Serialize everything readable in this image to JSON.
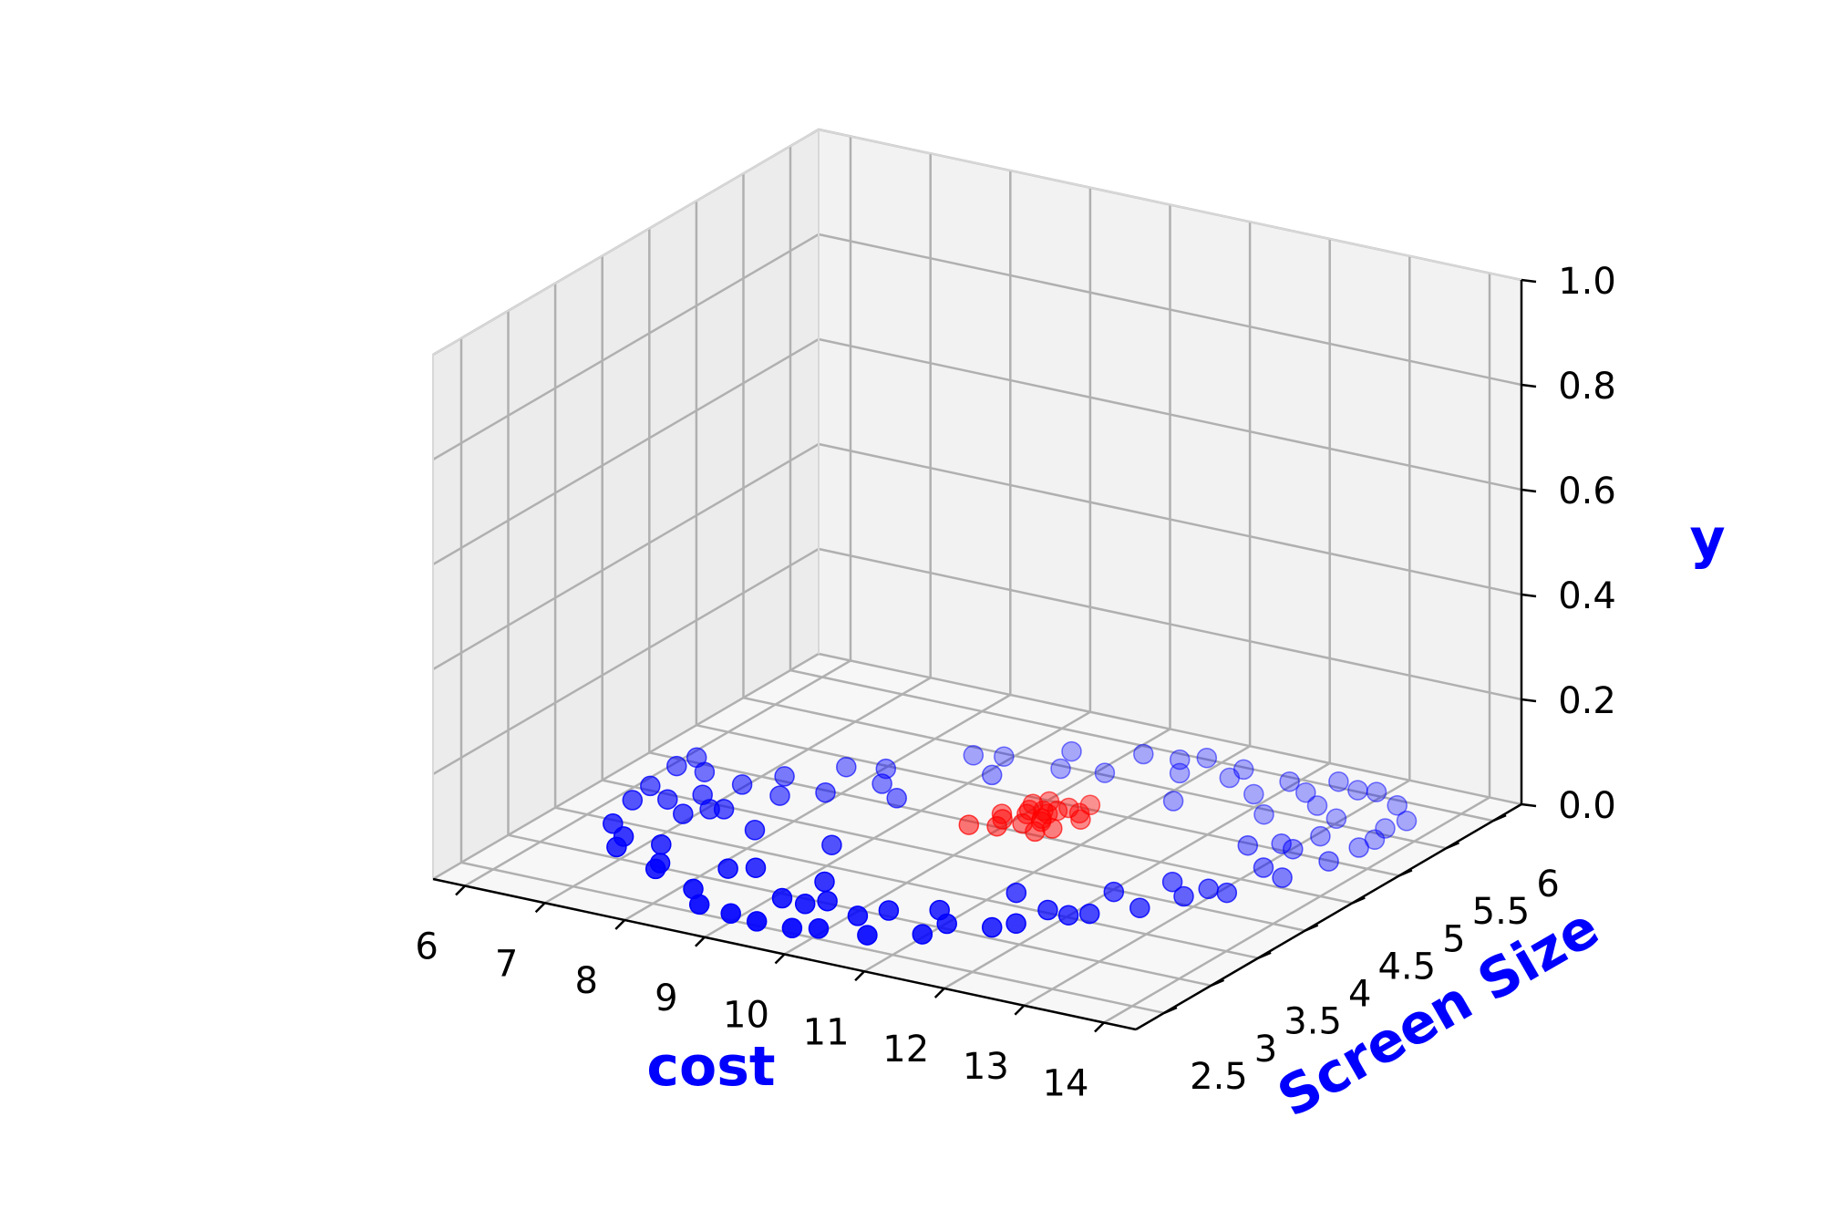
{
  "chart_data": {
    "type": "scatter",
    "projection": "3d",
    "title": "",
    "xlabel": "cost",
    "ylabel": "Screen Size",
    "zlabel": "y",
    "xlim": [
      6,
      14
    ],
    "ylim": [
      2.5,
      6
    ],
    "zlim": [
      0,
      1
    ],
    "xticks": [
      "6",
      "7",
      "8",
      "9",
      "10",
      "11",
      "12",
      "13",
      "14"
    ],
    "yticks": [
      "2.5",
      "3",
      "3.5",
      "4",
      "4.5",
      "5",
      "5.5",
      "6"
    ],
    "zticks": [
      "0.0",
      "0.2",
      "0.4",
      "0.6",
      "0.8",
      "1.0"
    ],
    "grid": true,
    "label_color": "#0000ff",
    "series": [
      {
        "color": "#0000ff",
        "points": [
          [
            6.06,
            4.4,
            0
          ],
          [
            6.11,
            4.57,
            0
          ],
          [
            6.13,
            4.06,
            0
          ],
          [
            6.19,
            3.82,
            0
          ],
          [
            6.38,
            3.45,
            0
          ],
          [
            6.68,
            3.31,
            0
          ],
          [
            6.78,
            3.15,
            0
          ],
          [
            7.15,
            3.31,
            0
          ],
          [
            7.43,
            3.06,
            0
          ],
          [
            7.48,
            2.97,
            0
          ],
          [
            8.14,
            2.81,
            0
          ],
          [
            8.44,
            2.62,
            0
          ],
          [
            8.87,
            2.59,
            0
          ],
          [
            9.23,
            2.56,
            0
          ],
          [
            9.66,
            2.57,
            0
          ],
          [
            9.91,
            2.64,
            0
          ],
          [
            10.46,
            2.69,
            0
          ],
          [
            10.95,
            2.86,
            0
          ],
          [
            11.48,
            3.15,
            0
          ],
          [
            11.64,
            3.27,
            0
          ],
          [
            11.99,
            3.53,
            0
          ],
          [
            12.16,
            3.61,
            0
          ],
          [
            12.53,
            3.83,
            0
          ],
          [
            12.75,
            4.11,
            0
          ],
          [
            13.09,
            4.28,
            0
          ],
          [
            13.36,
            4.64,
            0
          ],
          [
            13.53,
            4.99,
            0
          ],
          [
            13.59,
            5.26,
            0
          ],
          [
            13.61,
            5.41,
            0
          ],
          [
            13.53,
            5.59,
            0
          ],
          [
            13.61,
            5.75,
            0
          ],
          [
            13.28,
            5.93,
            0
          ],
          [
            12.88,
            6.05,
            0
          ],
          [
            12.68,
            6.02,
            0
          ],
          [
            12.37,
            6.08,
            0
          ],
          [
            11.92,
            5.94,
            0
          ],
          [
            11.31,
            5.97,
            0
          ],
          [
            10.79,
            6.02,
            0
          ],
          [
            10.57,
            5.92,
            0
          ],
          [
            10.15,
            5.89,
            0
          ],
          [
            9.45,
            5.72,
            0
          ],
          [
            8.91,
            5.46,
            0
          ],
          [
            8.61,
            5.39,
            0
          ],
          [
            8.02,
            4.96,
            0
          ],
          [
            7.63,
            4.87,
            0
          ],
          [
            7.21,
            4.57,
            0
          ],
          [
            6.95,
            4.34,
            0
          ],
          [
            6.75,
            4.09,
            0
          ],
          [
            6.41,
            4.4,
            0
          ],
          [
            6.5,
            3.93,
            0
          ],
          [
            6.87,
            3.78,
            0
          ],
          [
            7.04,
            3.92,
            0
          ],
          [
            7.78,
            3.77,
            0
          ],
          [
            8.14,
            3.18,
            0
          ],
          [
            8.38,
            3.27,
            0
          ],
          [
            9.1,
            2.94,
            0
          ],
          [
            9.4,
            2.93,
            0
          ],
          [
            10.07,
            2.92,
            0
          ],
          [
            10.73,
            3.23,
            0
          ],
          [
            11.01,
            3.07,
            0
          ],
          [
            11.72,
            3.54,
            0
          ],
          [
            12.04,
            3.97,
            0
          ],
          [
            12.42,
            4.27,
            0
          ],
          [
            12.86,
            4.28,
            0
          ],
          [
            13.03,
            4.72,
            0
          ],
          [
            13.01,
            5.05,
            0
          ],
          [
            13.06,
            5.3,
            0
          ],
          [
            12.93,
            5.58,
            0
          ],
          [
            12.55,
            5.7,
            0
          ],
          [
            12.24,
            5.84,
            0
          ],
          [
            11.79,
            5.67,
            0
          ],
          [
            11.31,
            5.82,
            0
          ],
          [
            10.78,
            5.74,
            0
          ],
          [
            10.09,
            5.53,
            0
          ],
          [
            9.62,
            5.46,
            0
          ],
          [
            9.09,
            5.18,
            0
          ],
          [
            8.22,
            4.75,
            0
          ],
          [
            7.84,
            4.47,
            0
          ],
          [
            7.17,
            3.96,
            0
          ],
          [
            7.47,
            4.3,
            0
          ],
          [
            8.72,
            3.79,
            0
          ],
          [
            9.56,
            3.03,
            0
          ],
          [
            10.27,
            3.08,
            0
          ],
          [
            11.16,
            3.68,
            0
          ],
          [
            12.54,
            4.97,
            0
          ],
          [
            12.82,
            5.09,
            0
          ],
          [
            12.2,
            5.43,
            0
          ],
          [
            11.16,
            5.35,
            0
          ],
          [
            8.58,
            4.6,
            0
          ],
          [
            9.23,
            3.28,
            0
          ]
        ]
      },
      {
        "color": "#ff0000",
        "points": [
          [
            9.66,
            4.45,
            0
          ],
          [
            9.94,
            4.51,
            0
          ],
          [
            9.79,
            4.69,
            0
          ],
          [
            10.27,
            4.7,
            0
          ],
          [
            10.6,
            4.84,
            0
          ],
          [
            10.46,
            5.06,
            0
          ],
          [
            10.31,
            4.96,
            0
          ],
          [
            10.03,
            4.99,
            0
          ],
          [
            9.92,
            4.91,
            0
          ],
          [
            10.25,
            4.89,
            0
          ],
          [
            10.02,
            4.76,
            0
          ],
          [
            10.48,
            4.64,
            0
          ],
          [
            10.21,
            4.82,
            0
          ],
          [
            10.37,
            4.55,
            0
          ],
          [
            10.13,
            4.62,
            0
          ],
          [
            9.98,
            4.82,
            0
          ],
          [
            10.49,
            4.92,
            0
          ],
          [
            10.12,
            4.85,
            0
          ],
          [
            10.23,
            4.74,
            0
          ],
          [
            9.88,
            4.62,
            0
          ]
        ]
      }
    ]
  }
}
